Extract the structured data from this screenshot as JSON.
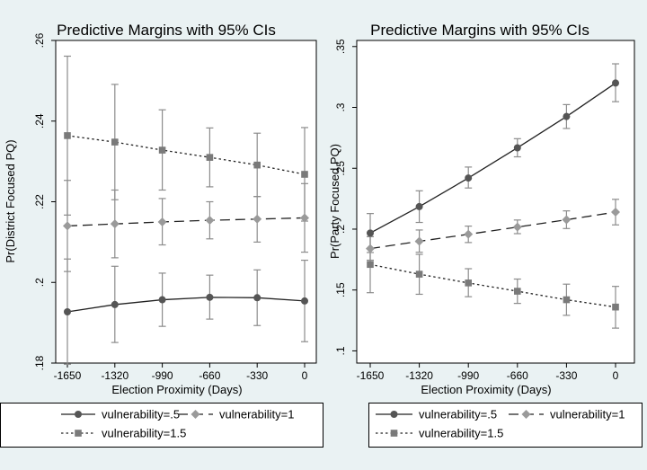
{
  "chart_data": [
    {
      "type": "line",
      "title": "Predictive Margins with 95% CIs",
      "xlabel": "Election Proximity (Days)",
      "ylabel": "Pr(District Focused PQ)",
      "x": [
        -1650,
        -1320,
        -990,
        -660,
        -330,
        0
      ],
      "xticks": [
        "-1650",
        "-1320",
        "-990",
        "-660",
        "-330",
        "0"
      ],
      "yticks": [
        ".18",
        ".2",
        ".22",
        ".24",
        ".26"
      ],
      "ytick_values": [
        0.18,
        0.2,
        0.22,
        0.24,
        0.26
      ],
      "ylim": [
        0.18,
        0.26
      ],
      "series": [
        {
          "name": "vulnerability=.5",
          "values": [
            0.1927,
            0.1945,
            0.1957,
            0.1963,
            0.1962,
            0.1954
          ],
          "ci_low": [
            0.1797,
            0.1851,
            0.1891,
            0.1909,
            0.1893,
            0.1853
          ],
          "ci_high": [
            0.2058,
            0.204,
            0.2023,
            0.2018,
            0.2031,
            0.2055
          ]
        },
        {
          "name": "vulnerability=1",
          "values": [
            0.214,
            0.2145,
            0.215,
            0.2154,
            0.2157,
            0.216
          ],
          "ci_low": [
            0.2027,
            0.2061,
            0.2093,
            0.2108,
            0.21,
            0.2075
          ],
          "ci_high": [
            0.2253,
            0.2229,
            0.2208,
            0.22,
            0.2213,
            0.2245
          ]
        },
        {
          "name": "vulnerability=1.5",
          "values": [
            0.2364,
            0.2348,
            0.2328,
            0.231,
            0.2291,
            0.2268
          ],
          "ci_low": [
            0.2167,
            0.2205,
            0.2229,
            0.2237,
            0.2213,
            0.2152
          ],
          "ci_high": [
            0.2561,
            0.2491,
            0.2428,
            0.2383,
            0.237,
            0.2384
          ]
        }
      ]
    },
    {
      "type": "line",
      "title": "Predictive Margins with 95% CIs",
      "xlabel": "Election Proximity (Days)",
      "ylabel": "Pr(Party Focused PQ)",
      "x": [
        -1650,
        -1320,
        -990,
        -660,
        -330,
        0
      ],
      "xticks": [
        "-1650",
        "-1320",
        "-990",
        "-660",
        "-330",
        "0"
      ],
      "yticks": [
        ".1",
        ".15",
        ".2",
        ".25",
        ".3",
        ".35"
      ],
      "ytick_values": [
        0.1,
        0.15,
        0.2,
        0.25,
        0.3,
        0.35
      ],
      "ylim": [
        0.09,
        0.355
      ],
      "series": [
        {
          "name": "vulnerability=.5",
          "values": [
            0.1968,
            0.2185,
            0.242,
            0.2668,
            0.2925,
            0.32
          ],
          "ci_low": [
            0.1808,
            0.2055,
            0.2338,
            0.2594,
            0.2827,
            0.3047
          ],
          "ci_high": [
            0.2128,
            0.2315,
            0.251,
            0.2743,
            0.3023,
            0.3358
          ]
        },
        {
          "name": "vulnerability=1",
          "values": [
            0.184,
            0.19,
            0.1958,
            0.2017,
            0.2077,
            0.214
          ],
          "ci_low": [
            0.1745,
            0.181,
            0.189,
            0.1963,
            0.2005,
            0.2035
          ],
          "ci_high": [
            0.1938,
            0.1993,
            0.2025,
            0.2075,
            0.215,
            0.2245
          ]
        },
        {
          "name": "vulnerability=1.5",
          "values": [
            0.171,
            0.163,
            0.1558,
            0.149,
            0.142,
            0.136
          ],
          "ci_low": [
            0.1478,
            0.1465,
            0.1445,
            0.139,
            0.1292,
            0.1187
          ],
          "ci_high": [
            0.1938,
            0.1793,
            0.1675,
            0.159,
            0.1548,
            0.153
          ]
        }
      ]
    }
  ],
  "legend": {
    "placement": "bottom",
    "items": [
      {
        "label": "vulnerability=.5",
        "marker": "circle",
        "dash": "solid",
        "color": "#555555"
      },
      {
        "label": "vulnerability=1",
        "marker": "diamond",
        "dash": "long-dash",
        "color": "#9a9a9a"
      },
      {
        "label": "vulnerability=1.5",
        "marker": "square",
        "dash": "dotted",
        "color": "#7a7a7a"
      }
    ]
  },
  "colors": {
    "background": "#eaf2f3",
    "ci_bars": "#8c8c8c"
  }
}
